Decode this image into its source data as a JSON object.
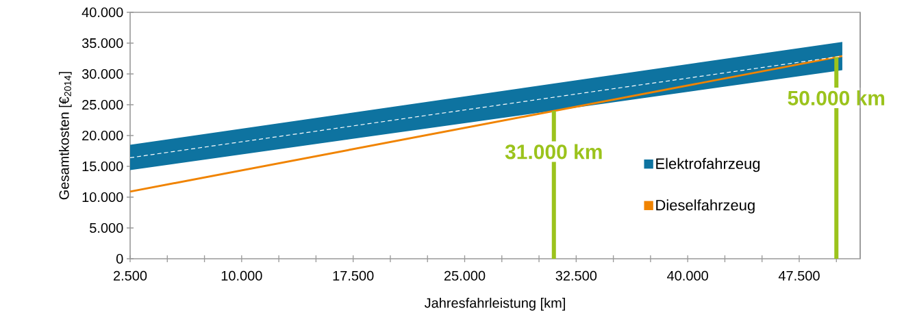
{
  "chart_data": {
    "type": "line",
    "xlabel": "Jahresfahrleistung [km]",
    "ylabel": "Gesamtkosten [€$_{2014}$]",
    "x": [
      2500,
      50400
    ],
    "xlim": [
      2500,
      51600
    ],
    "ylim": [
      0,
      40000
    ],
    "xticks": [
      {
        "value": 2500,
        "label": "2.500"
      },
      {
        "value": 5000,
        "label": null
      },
      {
        "value": 7500,
        "label": null
      },
      {
        "value": 10000,
        "label": "10.000"
      },
      {
        "value": 12500,
        "label": null
      },
      {
        "value": 15000,
        "label": null
      },
      {
        "value": 17500,
        "label": "17.500"
      },
      {
        "value": 20000,
        "label": null
      },
      {
        "value": 22500,
        "label": null
      },
      {
        "value": 25000,
        "label": "25.000"
      },
      {
        "value": 27500,
        "label": null
      },
      {
        "value": 30000,
        "label": null
      },
      {
        "value": 32500,
        "label": "32.500"
      },
      {
        "value": 35000,
        "label": null
      },
      {
        "value": 37500,
        "label": null
      },
      {
        "value": 40000,
        "label": "40.000"
      },
      {
        "value": 42500,
        "label": null
      },
      {
        "value": 45000,
        "label": null
      },
      {
        "value": 47500,
        "label": "47.500"
      },
      {
        "value": 50000,
        "label": null
      }
    ],
    "yticks": [
      {
        "value": 0,
        "label": "0"
      },
      {
        "value": 5000,
        "label": "5.000"
      },
      {
        "value": 10000,
        "label": "10.000"
      },
      {
        "value": 15000,
        "label": "15.000"
      },
      {
        "value": 20000,
        "label": "20.000"
      },
      {
        "value": 25000,
        "label": "25.000"
      },
      {
        "value": 30000,
        "label": "30.000"
      },
      {
        "value": 35000,
        "label": "35.000"
      },
      {
        "value": 40000,
        "label": "40.000"
      }
    ],
    "series": [
      {
        "name": "Elektrofahrzeug",
        "color": "#0e73a0",
        "values": [
          null,
          null
        ],
        "lower": [
          14400,
          30600
        ],
        "upper": [
          18500,
          35200
        ]
      },
      {
        "name": "Dieselfahrzeug",
        "color": "#f08300",
        "values": [
          10900,
          32900
        ]
      },
      {
        "color": "#ffffff",
        "values": [
          16400,
          32900
        ],
        "line_style": "dashed"
      }
    ],
    "ref_lines": [
      {
        "axis": "x",
        "value": 31000,
        "label": "31.000 km",
        "color": "#9bc31c"
      },
      {
        "axis": "x",
        "value": 50000,
        "label": "50.000 km",
        "color": "#9bc31c"
      }
    ],
    "legend": "right",
    "grid": false
  }
}
